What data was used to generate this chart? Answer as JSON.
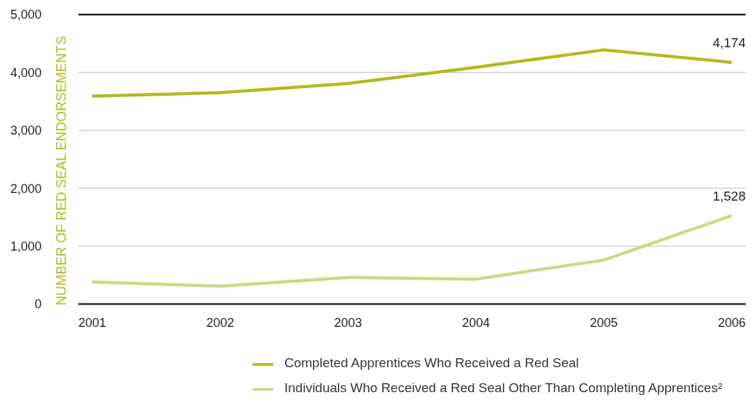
{
  "chart_data": {
    "type": "line",
    "ylabel": "NUMBER OF RED SEAL ENDORSEMENTS",
    "categories": [
      "2001",
      "2002",
      "2003",
      "2004",
      "2005",
      "2006"
    ],
    "series": [
      {
        "name": "Completed Apprentices Who Received a Red Seal",
        "color": "#b1bb1b",
        "values": [
          3590,
          3650,
          3810,
          4090,
          4390,
          4174
        ],
        "value_labels": [
          null,
          null,
          null,
          null,
          null,
          "4,174"
        ]
      },
      {
        "name": "Individuals Who Received a Red Seal Other Than Completing Apprentices²",
        "color": "#ced784",
        "values": [
          380,
          310,
          460,
          430,
          760,
          1528
        ],
        "value_labels": [
          null,
          null,
          null,
          null,
          null,
          "1,528"
        ]
      }
    ],
    "ylim": [
      0,
      5000
    ],
    "yticks": [
      0,
      {
        "value": 1000,
        "label": "1,000"
      },
      {
        "value": 2000,
        "label": "2,000"
      },
      {
        "value": 3000,
        "label": "3,000"
      },
      {
        "value": 4000,
        "label": "4,000"
      },
      {
        "value": 5000,
        "label": "5,000"
      }
    ],
    "grid": "y",
    "legend": "bottom",
    "marker": "none",
    "line_style": "solid"
  }
}
